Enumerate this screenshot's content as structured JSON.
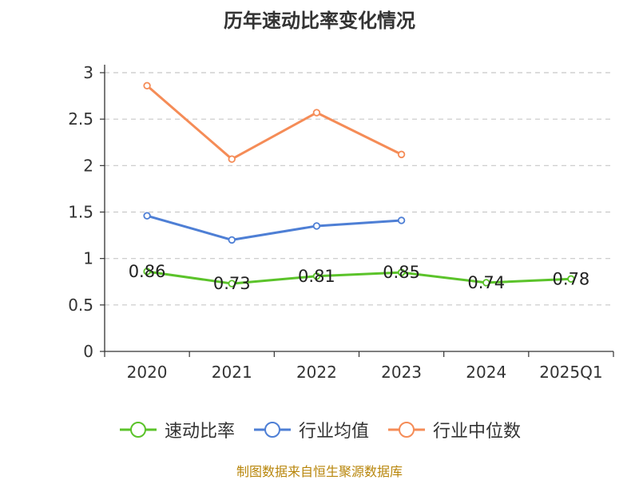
{
  "chart_data": {
    "type": "line",
    "title": "历年速动比率变化情况",
    "categories": [
      "2020",
      "2021",
      "2022",
      "2023",
      "2024",
      "2025Q1"
    ],
    "ylim": [
      0,
      3
    ],
    "yticks": [
      0,
      0.5,
      1,
      1.5,
      2,
      2.5,
      3
    ],
    "ytick_labels": [
      "0",
      "0.5",
      "1",
      "1.5",
      "2",
      "2.5",
      "3"
    ],
    "grid": true,
    "legend_position": "bottom",
    "series": [
      {
        "name": "速动比率",
        "color": "#5bc32a",
        "values": [
          0.86,
          0.73,
          0.81,
          0.85,
          0.74,
          0.78
        ],
        "labels": [
          "0.86",
          "0.73",
          "0.81",
          "0.85",
          "0.74",
          "0.78"
        ]
      },
      {
        "name": "行业均值",
        "color": "#4e7fd5",
        "values": [
          1.46,
          1.2,
          1.35,
          1.41,
          null,
          null
        ]
      },
      {
        "name": "行业中位数",
        "color": "#f58c57",
        "values": [
          2.86,
          2.07,
          2.57,
          2.12,
          null,
          null
        ]
      }
    ]
  },
  "source": {
    "text": "制图数据来自恒生聚源数据库",
    "color": "#b8860b"
  }
}
